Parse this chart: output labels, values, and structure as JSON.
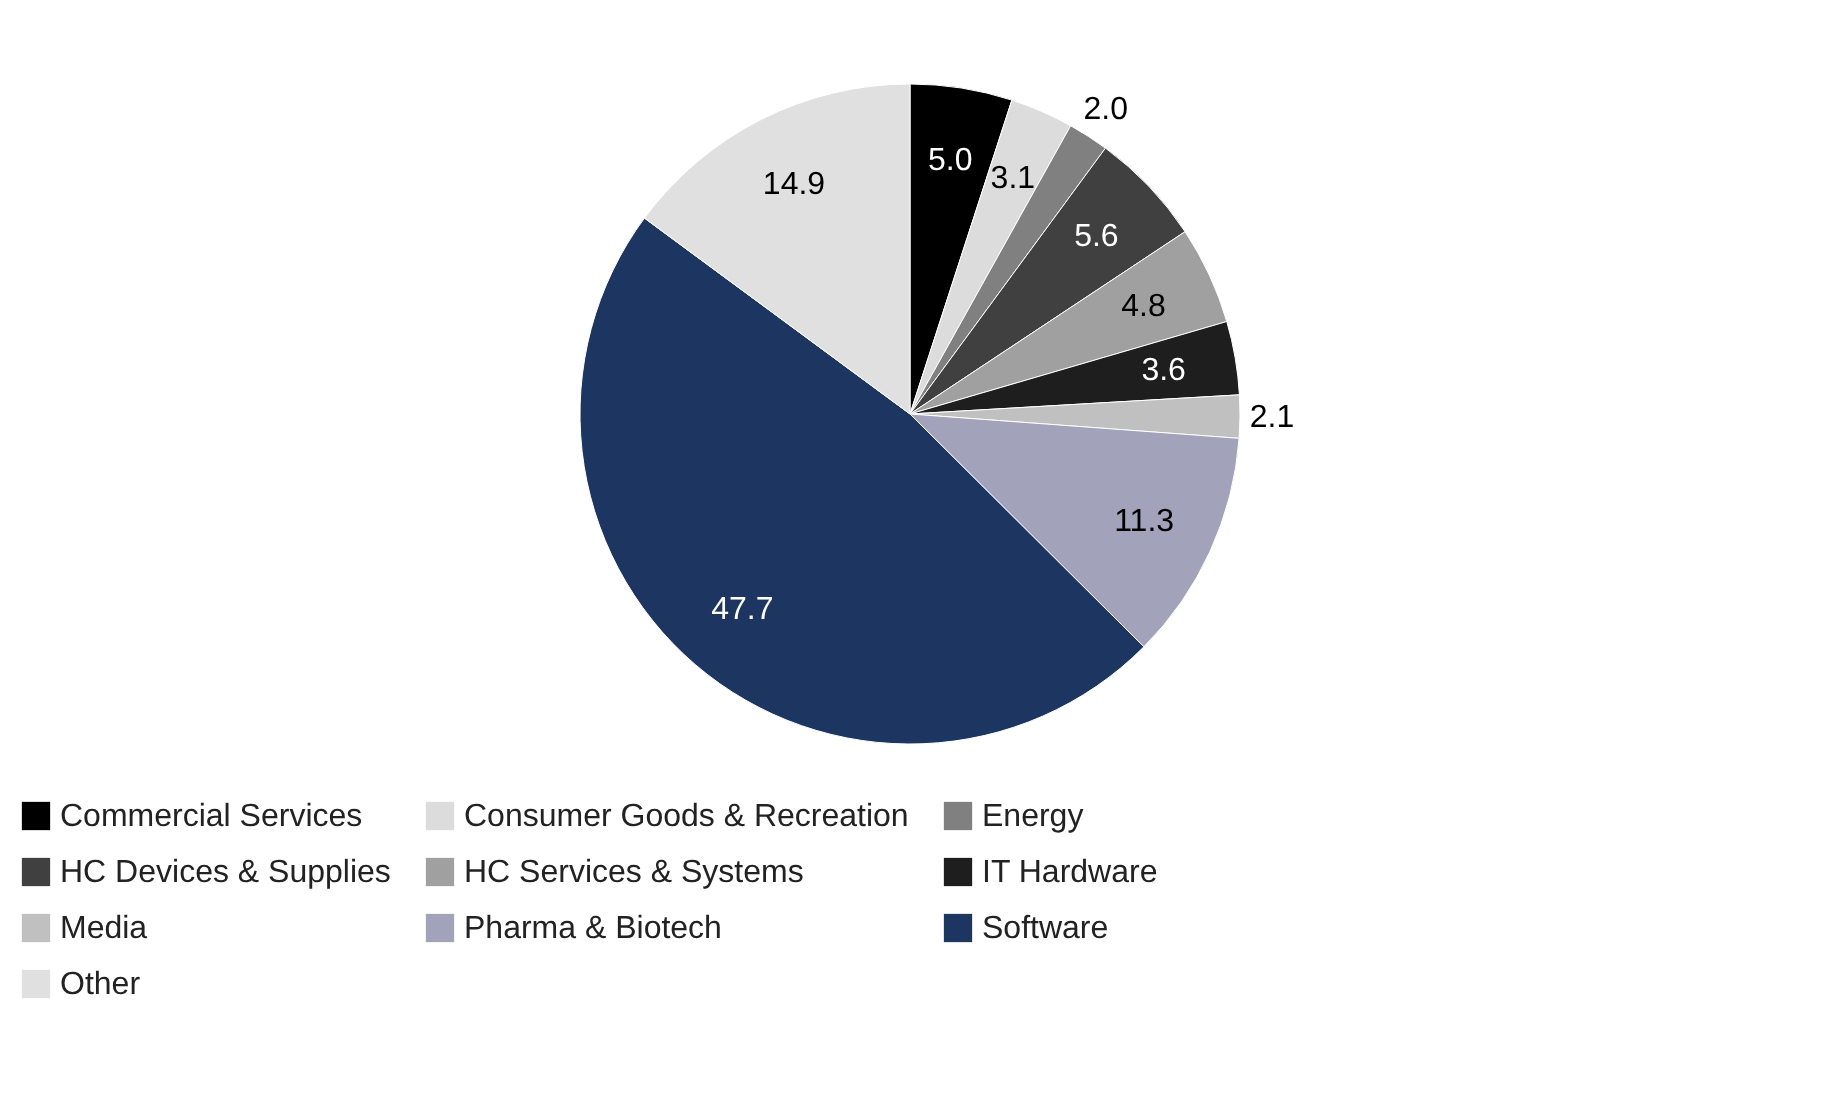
{
  "chart_data": {
    "type": "pie",
    "categories": [
      "Commercial Services",
      "Consumer Goods & Recreation",
      "Energy",
      "HC Devices & Supplies",
      "HC Services & Systems",
      "IT Hardware",
      "Media",
      "Pharma & Biotech",
      "Software",
      "Other"
    ],
    "values": [
      5.0,
      3.1,
      2.0,
      5.6,
      4.8,
      3.6,
      2.1,
      11.3,
      47.7,
      14.9
    ],
    "colors": [
      "#000000",
      "#dcdcdc",
      "#808080",
      "#404040",
      "#a0a0a0",
      "#1e1e1e",
      "#c0c0c0",
      "#a2a2bb",
      "#1c3561",
      "#e0e0e0"
    ],
    "value_labels": [
      "5.0",
      "3.1",
      "2.0",
      "5.6",
      "4.8",
      "3.6",
      "2.1",
      "11.3",
      "47.7",
      "14.9"
    ],
    "legend": "bottom"
  }
}
